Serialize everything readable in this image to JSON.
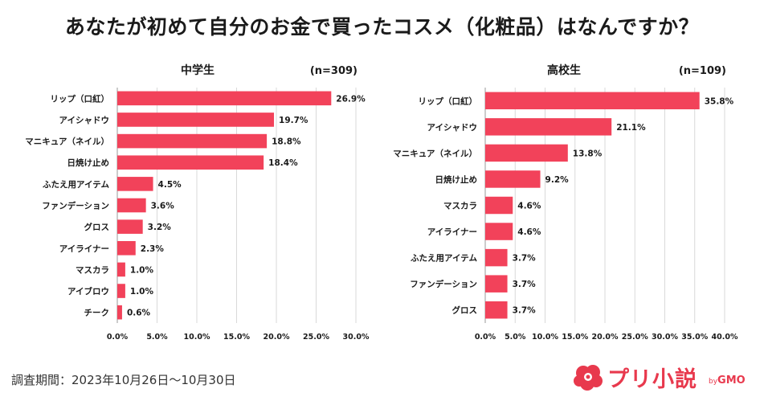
{
  "title": "あなたが初めて自分のお金で買ったコスメ（化粧品）はなんですか？",
  "footer": {
    "survey_period": "調査期間：2023年10月26日～10月30日"
  },
  "logo": {
    "text": "プリ小説",
    "by_prefix": "by",
    "by_brand": "GMO",
    "icon": "cloud-blossom-icon"
  },
  "colors": {
    "bar": "#f2425a",
    "grid": "#d9d9d9",
    "axis": "#999999",
    "text": "#1a1a1a"
  },
  "chart_data": [
    {
      "type": "bar",
      "orientation": "horizontal",
      "title": "中学生",
      "sample_size": "(n=309)",
      "categories": [
        "リップ（口紅）",
        "アイシャドウ",
        "マニキュア（ネイル）",
        "日焼け止め",
        "ふたえ用アイテム",
        "ファンデーション",
        "グロス",
        "アイライナー",
        "マスカラ",
        "アイブロウ",
        "チーク"
      ],
      "values": [
        26.9,
        19.7,
        18.8,
        18.4,
        4.5,
        3.6,
        3.2,
        2.3,
        1.0,
        1.0,
        0.6
      ],
      "value_labels": [
        "26.9%",
        "19.7%",
        "18.8%",
        "18.4%",
        "4.5%",
        "3.6%",
        "3.2%",
        "2.3%",
        "1.0%",
        "1.0%",
        "0.6%"
      ],
      "xlim": [
        0,
        30
      ],
      "xticks": [
        "0.0%",
        "5.0%",
        "10.0%",
        "15.0%",
        "20.0%",
        "25.0%",
        "30.0%"
      ],
      "xlabel": "",
      "ylabel": "",
      "grid": true,
      "legend": "none"
    },
    {
      "type": "bar",
      "orientation": "horizontal",
      "title": "高校生",
      "sample_size": "(n=109)",
      "categories": [
        "リップ（口紅）",
        "アイシャドウ",
        "マニキュア（ネイル）",
        "日焼け止め",
        "マスカラ",
        "アイライナー",
        "ふたえ用アイテム",
        "ファンデーション",
        "グロス"
      ],
      "values": [
        35.8,
        21.1,
        13.8,
        9.2,
        4.6,
        4.6,
        3.7,
        3.7,
        3.7
      ],
      "value_labels": [
        "35.8%",
        "21.1%",
        "13.8%",
        "9.2%",
        "4.6%",
        "4.6%",
        "3.7%",
        "3.7%",
        "3.7%"
      ],
      "xlim": [
        0,
        40
      ],
      "xticks": [
        "0.0%",
        "5.0%",
        "10.0%",
        "15.0%",
        "20.0%",
        "25.0%",
        "30.0%",
        "35.0%",
        "40.0%"
      ],
      "xlabel": "",
      "ylabel": "",
      "grid": true,
      "legend": "none"
    }
  ]
}
